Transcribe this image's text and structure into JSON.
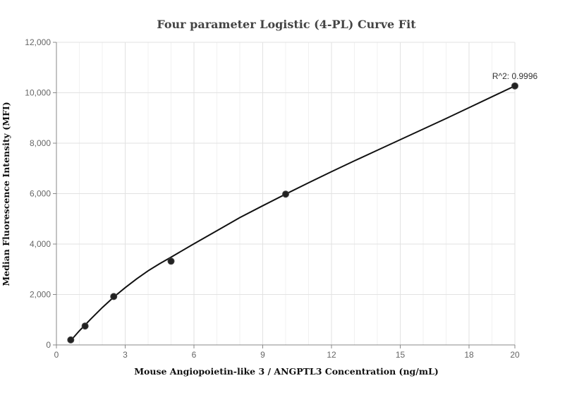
{
  "chart_data": {
    "type": "scatter",
    "title": "Four parameter Logistic (4-PL) Curve Fit",
    "xlabel": "Mouse Angiopoietin-like 3 / ANGPTL3 Concentration (ng/mL)",
    "ylabel": "Median Fluorescence Intensity (MFI)",
    "xlim": [
      0,
      20
    ],
    "ylim": [
      0,
      12000
    ],
    "x_ticks": [
      0,
      3,
      6,
      9,
      12,
      15,
      18,
      20
    ],
    "x_tick_labels": [
      "0",
      "3",
      "6",
      "9",
      "12",
      "15",
      "18",
      "20"
    ],
    "y_ticks": [
      0,
      2000,
      4000,
      6000,
      8000,
      10000,
      12000
    ],
    "y_tick_labels": [
      "0",
      "2,000",
      "4,000",
      "6,000",
      "8,000",
      "10,000",
      "12,000"
    ],
    "grid": true,
    "points": {
      "x": [
        0.625,
        1.25,
        2.5,
        5,
        10,
        20
      ],
      "y": [
        200,
        750,
        1920,
        3320,
        5980,
        10270
      ]
    },
    "fit_curve": {
      "x": [
        0.625,
        1,
        1.5,
        2,
        2.5,
        3,
        3.5,
        4,
        4.5,
        5,
        6,
        7,
        8,
        9,
        10,
        11,
        12,
        13,
        14,
        15,
        16,
        17,
        18,
        19,
        20
      ],
      "y": [
        170,
        560,
        1030,
        1480,
        1900,
        2270,
        2620,
        2940,
        3220,
        3480,
        4010,
        4530,
        5050,
        5520,
        5980,
        6430,
        6870,
        7300,
        7720,
        8140,
        8560,
        8980,
        9410,
        9840,
        10270
      ]
    },
    "annotation": "R^2: 0.9996"
  }
}
